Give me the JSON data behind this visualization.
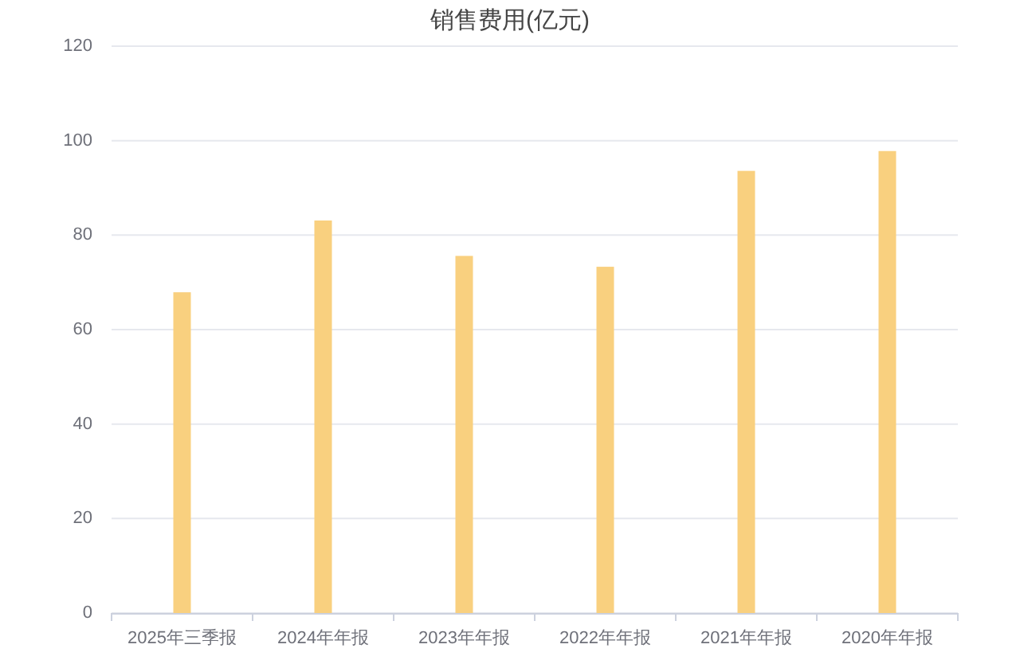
{
  "chart_data": {
    "type": "bar",
    "title": "销售费用(亿元)",
    "categories": [
      "2025年三季报",
      "2024年年报",
      "2023年年报",
      "2022年年报",
      "2021年年报",
      "2020年年报"
    ],
    "values": [
      67.9,
      83.1,
      75.6,
      73.3,
      93.6,
      97.8
    ],
    "color": "#f9d07f",
    "ylim": [
      0,
      120
    ],
    "yticks": [
      0,
      20,
      40,
      60,
      80,
      100,
      120
    ],
    "grid": "y"
  }
}
